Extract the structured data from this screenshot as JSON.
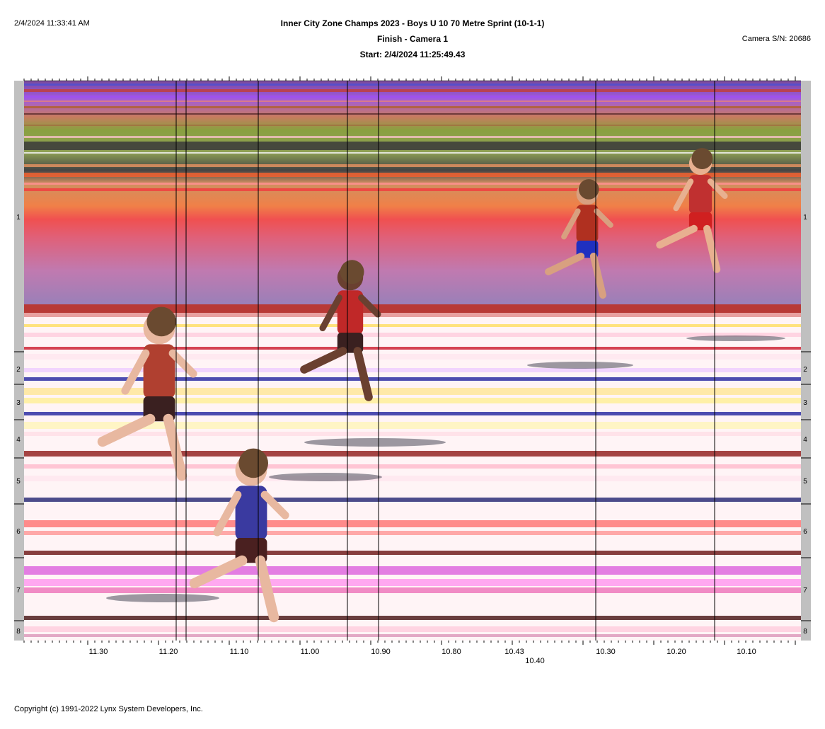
{
  "header": {
    "timestamp": "2/4/2024 11:33:41 AM",
    "event_title": "Inner City Zone Champs 2023 - Boys U 10 70 Metre Sprint (10-1-1)",
    "camera_line": "Finish - Camera 1",
    "start_line": "Start: 2/4/2024 11:25:49.43",
    "camera_serial": "Camera S/N: 20686"
  },
  "lanes": [
    {
      "label": "1"
    },
    {
      "label": "2"
    },
    {
      "label": "3"
    },
    {
      "label": "4"
    },
    {
      "label": "5"
    },
    {
      "label": "6"
    },
    {
      "label": "7"
    },
    {
      "label": "8"
    }
  ],
  "time_axis": {
    "tick_labels": [
      "11.30",
      "11.20",
      "11.10",
      "11.00",
      "10.90",
      "10.80",
      "10.43",
      "10.30",
      "10.20",
      "10.10"
    ],
    "secondary_label": "10.40"
  },
  "colors": {
    "track_red": "#b83a36",
    "lane_blue": "#3a3aa8",
    "background_pink": "#c07ab0",
    "lane_gutter": "#c0c0c0"
  },
  "footer": {
    "copyright": "Copyright (c) 1991-2022 Lynx System Developers, Inc."
  }
}
